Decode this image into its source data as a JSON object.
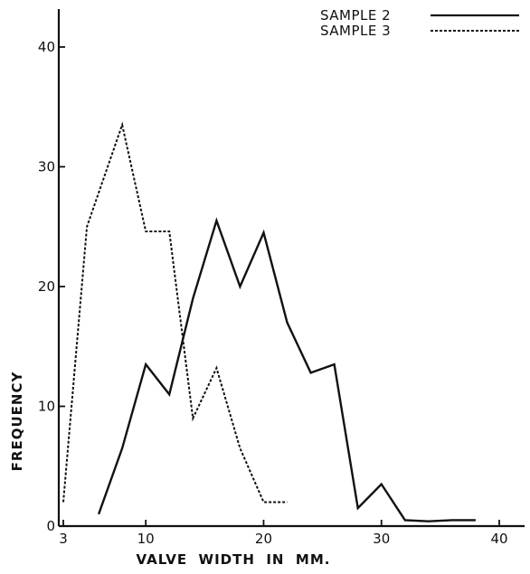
{
  "chart_data": {
    "type": "line",
    "title": "",
    "xlabel": "VALVE  WIDTH  IN  MM.",
    "ylabel": "FREQUENCY",
    "xlim": [
      3,
      43
    ],
    "ylim": [
      0,
      43
    ],
    "xticks": [
      3,
      10,
      20,
      30,
      40
    ],
    "yticks": [
      0,
      10,
      20,
      30,
      40
    ],
    "grid": false,
    "legend_position": "top-right",
    "series": [
      {
        "name": "SAMPLE 2",
        "style": "solid",
        "x": [
          6,
          8,
          10,
          12,
          14,
          16,
          18,
          20,
          22,
          24,
          26,
          28,
          30,
          32,
          34,
          36,
          38
        ],
        "y": [
          1,
          6.5,
          13.5,
          11,
          19,
          25.5,
          20,
          24.5,
          17,
          12.8,
          13.5,
          1.5,
          3.5,
          0.5,
          0.4,
          0.5,
          0.5
        ]
      },
      {
        "name": "SAMPLE 3",
        "style": "dashed",
        "x": [
          3,
          5,
          8,
          10,
          12,
          14,
          16,
          18,
          20,
          22
        ],
        "y": [
          2,
          25,
          33.5,
          24.6,
          24.6,
          9,
          13.2,
          6.5,
          2,
          2
        ]
      }
    ]
  }
}
